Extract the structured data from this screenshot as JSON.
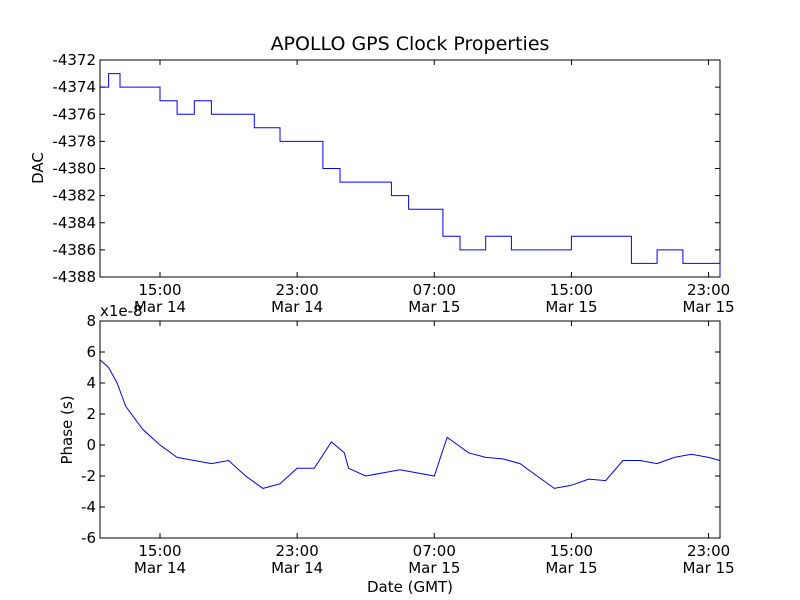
{
  "chart_data": [
    {
      "type": "line",
      "title": "APOLLO GPS Clock Properties",
      "xlabel": "",
      "ylabel": "DAC",
      "xlim": [
        "Mar 14 11:30",
        "Mar 15 23:40"
      ],
      "ylim": [
        -4388,
        -4372
      ],
      "ytick_labels": [
        "-4388",
        "-4386",
        "-4384",
        "-4382",
        "-4380",
        "-4378",
        "-4376",
        "-4374",
        "-4372"
      ],
      "xtick_labels": [
        {
          "time": "15:00",
          "date": "Mar 14"
        },
        {
          "time": "23:00",
          "date": "Mar 14"
        },
        {
          "time": "07:00",
          "date": "Mar 15"
        },
        {
          "time": "15:00",
          "date": "Mar 15"
        },
        {
          "time": "23:00",
          "date": "Mar 15"
        }
      ],
      "color": "#0000ff",
      "series_x": [
        "Mar 14 11:30",
        "Mar 14 12:00",
        "Mar 14 12:40",
        "Mar 14 14:30",
        "Mar 14 15:00",
        "Mar 14 16:00",
        "Mar 14 17:00",
        "Mar 14 18:00",
        "Mar 14 19:00",
        "Mar 14 20:30",
        "Mar 14 22:00",
        "Mar 14 23:30",
        "Mar 15 00:30",
        "Mar 15 01:30",
        "Mar 15 03:00",
        "Mar 15 04:30",
        "Mar 15 05:30",
        "Mar 15 06:30",
        "Mar 15 07:30",
        "Mar 15 08:30",
        "Mar 15 10:00",
        "Mar 15 11:30",
        "Mar 15 13:00",
        "Mar 15 15:00",
        "Mar 15 17:00",
        "Mar 15 18:30",
        "Mar 15 20:00",
        "Mar 15 21:30",
        "Mar 15 23:40"
      ],
      "series_y": [
        -4374,
        -4373,
        -4374,
        -4374,
        -4375,
        -4376,
        -4375,
        -4376,
        -4376,
        -4377,
        -4378,
        -4378,
        -4380,
        -4381,
        -4381,
        -4382,
        -4383,
        -4383,
        -4385,
        -4386,
        -4385,
        -4386,
        -4386,
        -4385,
        -4385,
        -4387,
        -4386,
        -4387,
        -4388
      ]
    },
    {
      "type": "line",
      "title": "",
      "xlabel": "Date (GMT)",
      "ylabel": "Phase (s)",
      "offset_label": "x1e-8",
      "xlim": [
        "Mar 14 11:30",
        "Mar 15 23:40"
      ],
      "ylim": [
        -6,
        8
      ],
      "ytick_labels": [
        "-6",
        "-4",
        "-2",
        "0",
        "2",
        "4",
        "6",
        "8"
      ],
      "xtick_labels": [
        {
          "time": "15:00",
          "date": "Mar 14"
        },
        {
          "time": "23:00",
          "date": "Mar 14"
        },
        {
          "time": "07:00",
          "date": "Mar 15"
        },
        {
          "time": "15:00",
          "date": "Mar 15"
        },
        {
          "time": "23:00",
          "date": "Mar 15"
        }
      ],
      "color": "#0000ff",
      "series_x": [
        "Mar 14 11:30",
        "Mar 14 12:00",
        "Mar 14 12:30",
        "Mar 14 13:00",
        "Mar 14 14:00",
        "Mar 14 15:00",
        "Mar 14 16:00",
        "Mar 14 17:00",
        "Mar 14 18:00",
        "Mar 14 19:00",
        "Mar 14 20:00",
        "Mar 14 21:00",
        "Mar 14 22:00",
        "Mar 14 23:00",
        "Mar 15 00:00",
        "Mar 15 01:00",
        "Mar 15 01:45",
        "Mar 15 02:00",
        "Mar 15 03:00",
        "Mar 15 04:00",
        "Mar 15 05:00",
        "Mar 15 06:00",
        "Mar 15 07:00",
        "Mar 15 07:45",
        "Mar 15 08:00",
        "Mar 15 09:00",
        "Mar 15 10:00",
        "Mar 15 11:00",
        "Mar 15 12:00",
        "Mar 15 13:00",
        "Mar 15 14:00",
        "Mar 15 15:00",
        "Mar 15 16:00",
        "Mar 15 17:00",
        "Mar 15 18:00",
        "Mar 15 19:00",
        "Mar 15 20:00",
        "Mar 15 21:00",
        "Mar 15 22:00",
        "Mar 15 23:00",
        "Mar 15 23:40"
      ],
      "series_y": [
        5.5,
        5.0,
        4.0,
        2.5,
        1.0,
        0,
        -0.8,
        -1.0,
        -1.2,
        -1.0,
        -2.0,
        -2.8,
        -2.5,
        -1.5,
        -1.5,
        0.2,
        -0.5,
        -1.5,
        -2.0,
        -1.8,
        -1.6,
        -1.8,
        -2.0,
        0.5,
        0.3,
        -0.5,
        -0.8,
        -0.9,
        -1.2,
        -2.0,
        -2.8,
        -2.6,
        -2.2,
        -2.3,
        -1.0,
        -1.0,
        -1.2,
        -0.8,
        -0.6,
        -0.8,
        -1.0
      ]
    }
  ]
}
